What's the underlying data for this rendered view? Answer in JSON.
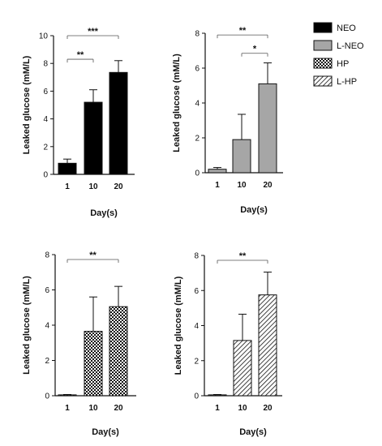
{
  "legend": [
    {
      "label": "NEO",
      "pattern": "solid-black"
    },
    {
      "label": "L-NEO",
      "pattern": "solid-gray"
    },
    {
      "label": "HP",
      "pattern": "checker"
    },
    {
      "label": "L-HP",
      "pattern": "diagonal-hatch"
    }
  ],
  "chart_data": [
    {
      "type": "bar",
      "panel": "top-left",
      "series_name": "NEO",
      "pattern": "solid-black",
      "categories": [
        "1",
        "10",
        "20"
      ],
      "values": [
        0.8,
        5.2,
        7.35
      ],
      "errors": [
        0.3,
        0.9,
        0.85
      ],
      "xlabel": "Day(s)",
      "ylabel": "Leaked glucose (mM/L)",
      "ylim": [
        0,
        10
      ],
      "yticks": [
        0,
        2,
        4,
        6,
        8,
        10
      ],
      "significance": [
        {
          "from": 0,
          "to": 1,
          "label": "**"
        },
        {
          "from": 0,
          "to": 2,
          "label": "***"
        }
      ]
    },
    {
      "type": "bar",
      "panel": "top-right",
      "series_name": "L-NEO",
      "pattern": "solid-gray",
      "categories": [
        "1",
        "10",
        "20"
      ],
      "values": [
        0.2,
        1.9,
        5.1
      ],
      "errors": [
        0.1,
        1.45,
        1.2
      ],
      "xlabel": "Day(s)",
      "ylabel": "Leaked glucose (mM/L)",
      "ylim": [
        0,
        8
      ],
      "yticks": [
        0,
        2,
        4,
        6,
        8
      ],
      "significance": [
        {
          "from": 0,
          "to": 2,
          "label": "**"
        },
        {
          "from": 1,
          "to": 2,
          "label": "*"
        }
      ]
    },
    {
      "type": "bar",
      "panel": "bottom-left",
      "series_name": "HP",
      "pattern": "checker",
      "categories": [
        "1",
        "10",
        "20"
      ],
      "values": [
        0.05,
        3.65,
        5.05
      ],
      "errors": [
        0.02,
        1.95,
        1.15
      ],
      "xlabel": "Day(s)",
      "ylabel": "Leaked glucose (mM/L)",
      "ylim": [
        0,
        8
      ],
      "yticks": [
        0,
        2,
        4,
        6,
        8
      ],
      "significance": [
        {
          "from": 0,
          "to": 2,
          "label": "**"
        }
      ]
    },
    {
      "type": "bar",
      "panel": "bottom-right",
      "series_name": "L-HP",
      "pattern": "diagonal-hatch",
      "categories": [
        "1",
        "10",
        "20"
      ],
      "values": [
        0.05,
        3.15,
        5.75
      ],
      "errors": [
        0.02,
        1.5,
        1.3
      ],
      "xlabel": "Day(s)",
      "ylabel": "Leaked glucose (mM/L)",
      "ylim": [
        0,
        8
      ],
      "yticks": [
        0,
        2,
        4,
        6,
        8
      ],
      "significance": [
        {
          "from": 0,
          "to": 2,
          "label": "**"
        }
      ]
    }
  ]
}
